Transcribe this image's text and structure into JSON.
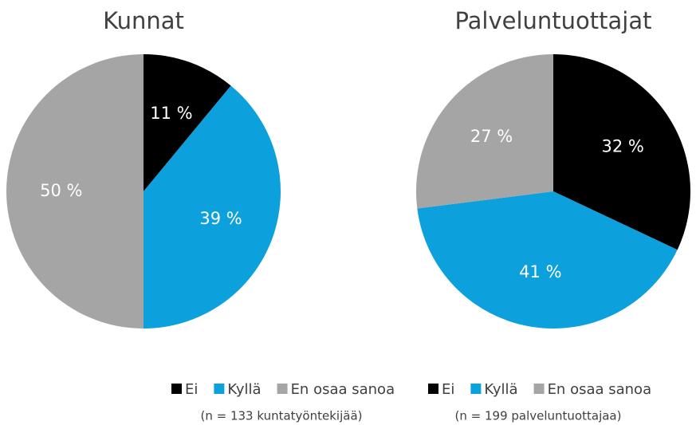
{
  "chart_data": [
    {
      "type": "pie",
      "title": "Kunnat",
      "categories": [
        "Ei",
        "Kyllä",
        "En osaa sanoa"
      ],
      "values": [
        11,
        39,
        50
      ],
      "value_labels": [
        "11 %",
        "39 %",
        "50 %"
      ],
      "colors": [
        "#000000",
        "#0ca0dc",
        "#a5a5a5"
      ],
      "note": "(n = 133 kuntatyöntekijää)"
    },
    {
      "type": "pie",
      "title": "Palveluntuottajat",
      "categories": [
        "Ei",
        "Kyllä",
        "En osaa sanoa"
      ],
      "values": [
        32,
        41,
        27
      ],
      "value_labels": [
        "32 %",
        "41 %",
        "27 %"
      ],
      "colors": [
        "#000000",
        "#0ca0dc",
        "#a5a5a5"
      ],
      "note": "(n = 199 palveluntuottajaa)"
    }
  ]
}
